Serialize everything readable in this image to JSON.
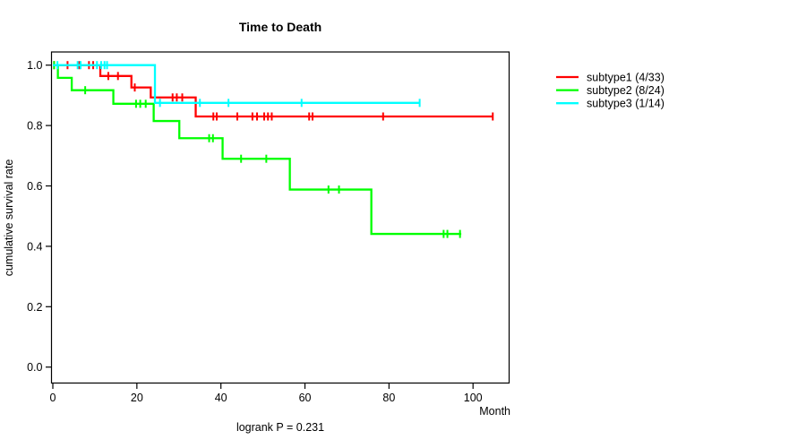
{
  "title": "Time to Death",
  "footer": "logrank P = 0.231",
  "x_axis": {
    "label": "Month",
    "ticks": [
      {
        "label": "0",
        "value": 0
      },
      {
        "label": "20",
        "value": 20
      },
      {
        "label": "40",
        "value": 40
      },
      {
        "label": "60",
        "value": 60
      },
      {
        "label": "80",
        "value": 80
      },
      {
        "label": "100",
        "value": 100
      }
    ]
  },
  "y_axis": {
    "label": "cumulative survival rate",
    "ticks": [
      {
        "label": "0.0",
        "value": 0.0
      },
      {
        "label": "0.2",
        "value": 0.2
      },
      {
        "label": "0.4",
        "value": 0.4
      },
      {
        "label": "0.6",
        "value": 0.6
      },
      {
        "label": "0.8",
        "value": 0.8
      },
      {
        "label": "1.0",
        "value": 1.0
      }
    ]
  },
  "legend": {
    "entries": [
      {
        "label": "subtype1 (4/33)",
        "color": "#ff0000"
      },
      {
        "label": "subtype2 (8/24)",
        "color": "#00ff00"
      },
      {
        "label": "subtype3 (1/14)",
        "color": "#00ffff"
      }
    ]
  },
  "chart_data": {
    "type": "line",
    "subtype": "kaplan-meier-step",
    "title": "Time to Death",
    "xlabel": "Month",
    "ylabel": "cumulative survival rate",
    "annotation": "logrank P = 0.231",
    "xlim": [
      0,
      108
    ],
    "ylim": [
      0.0,
      1.0
    ],
    "grid": false,
    "legend_position": "right-outside",
    "series": [
      {
        "name": "subtype1 (4/33)",
        "color": "#ff0000",
        "events": "4/33",
        "steps": [
          [
            0,
            1.0
          ],
          [
            11.3,
            0.964
          ],
          [
            18.7,
            0.926
          ],
          [
            23.3,
            0.893
          ],
          [
            34.0,
            0.83
          ]
        ],
        "end_month": 104.7,
        "censor_marks": [
          [
            0.3,
            1.0
          ],
          [
            3.5,
            1.0
          ],
          [
            6.3,
            1.0
          ],
          [
            8.6,
            1.0
          ],
          [
            9.6,
            1.0
          ],
          [
            13.2,
            0.964
          ],
          [
            15.5,
            0.964
          ],
          [
            19.5,
            0.926
          ],
          [
            28.5,
            0.893
          ],
          [
            29.5,
            0.893
          ],
          [
            30.8,
            0.893
          ],
          [
            38.2,
            0.83
          ],
          [
            39.0,
            0.83
          ],
          [
            43.9,
            0.83
          ],
          [
            47.5,
            0.83
          ],
          [
            48.6,
            0.83
          ],
          [
            50.3,
            0.83
          ],
          [
            51.2,
            0.83
          ],
          [
            52.1,
            0.83
          ],
          [
            61.0,
            0.83
          ],
          [
            61.8,
            0.83
          ],
          [
            78.6,
            0.83
          ],
          [
            104.7,
            0.83
          ]
        ]
      },
      {
        "name": "subtype2 (8/24)",
        "color": "#00ff00",
        "events": "8/24",
        "steps": [
          [
            0,
            1.0
          ],
          [
            1.2,
            0.958
          ],
          [
            4.5,
            0.917
          ],
          [
            14.4,
            0.872
          ],
          [
            24.0,
            0.815
          ],
          [
            30.1,
            0.758
          ],
          [
            40.4,
            0.69
          ],
          [
            56.4,
            0.588
          ],
          [
            75.8,
            0.441
          ]
        ],
        "end_month": 97.2,
        "censor_marks": [
          [
            0.3,
            1.0
          ],
          [
            7.7,
            0.917
          ],
          [
            19.8,
            0.872
          ],
          [
            20.8,
            0.872
          ],
          [
            22.1,
            0.872
          ],
          [
            37.2,
            0.758
          ],
          [
            38.1,
            0.758
          ],
          [
            44.8,
            0.69
          ],
          [
            50.8,
            0.69
          ],
          [
            65.6,
            0.588
          ],
          [
            68.1,
            0.588
          ],
          [
            93.0,
            0.441
          ],
          [
            93.9,
            0.441
          ],
          [
            96.9,
            0.441
          ]
        ]
      },
      {
        "name": "subtype3 (1/14)",
        "color": "#00ffff",
        "events": "1/14",
        "steps": [
          [
            0,
            1.0
          ],
          [
            24.3,
            0.875
          ]
        ],
        "end_month": 87.3,
        "censor_marks": [
          [
            1.1,
            1.0
          ],
          [
            5.9,
            1.0
          ],
          [
            6.6,
            1.0
          ],
          [
            10.5,
            1.0
          ],
          [
            11.5,
            1.0
          ],
          [
            12.3,
            1.0
          ],
          [
            12.9,
            1.0
          ],
          [
            25.5,
            0.875
          ],
          [
            35.0,
            0.875
          ],
          [
            41.8,
            0.875
          ],
          [
            59.2,
            0.875
          ],
          [
            87.3,
            0.875
          ]
        ]
      }
    ]
  }
}
